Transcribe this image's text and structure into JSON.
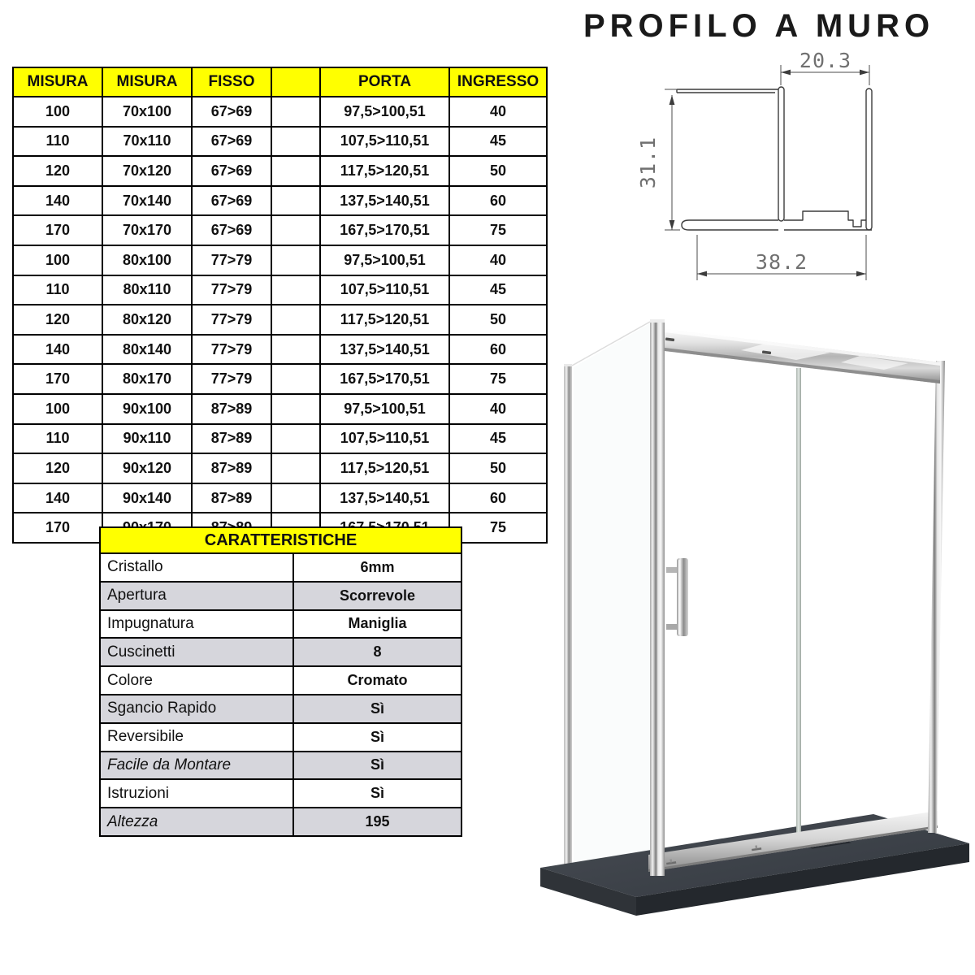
{
  "page": {
    "title": "PROFILO A MURO"
  },
  "size_table": {
    "headers": [
      "MISURA",
      "MISURA",
      "FISSO",
      "",
      "PORTA",
      "INGRESSO"
    ],
    "rows": [
      [
        "100",
        "70x100",
        "67>69",
        "",
        "97,5>100,51",
        "40"
      ],
      [
        "110",
        "70x110",
        "67>69",
        "",
        "107,5>110,51",
        "45"
      ],
      [
        "120",
        "70x120",
        "67>69",
        "",
        "117,5>120,51",
        "50"
      ],
      [
        "140",
        "70x140",
        "67>69",
        "",
        "137,5>140,51",
        "60"
      ],
      [
        "170",
        "70x170",
        "67>69",
        "",
        "167,5>170,51",
        "75"
      ],
      [
        "100",
        "80x100",
        "77>79",
        "",
        "97,5>100,51",
        "40"
      ],
      [
        "110",
        "80x110",
        "77>79",
        "",
        "107,5>110,51",
        "45"
      ],
      [
        "120",
        "80x120",
        "77>79",
        "",
        "117,5>120,51",
        "50"
      ],
      [
        "140",
        "80x140",
        "77>79",
        "",
        "137,5>140,51",
        "60"
      ],
      [
        "170",
        "80x170",
        "77>79",
        "",
        "167,5>170,51",
        "75"
      ],
      [
        "100",
        "90x100",
        "87>89",
        "",
        "97,5>100,51",
        "40"
      ],
      [
        "110",
        "90x110",
        "87>89",
        "",
        "107,5>110,51",
        "45"
      ],
      [
        "120",
        "90x120",
        "87>89",
        "",
        "117,5>120,51",
        "50"
      ],
      [
        "140",
        "90x140",
        "87>89",
        "",
        "137,5>140,51",
        "60"
      ],
      [
        "170",
        "90x170",
        "87>89",
        "",
        "167,5>170,51",
        "75"
      ]
    ]
  },
  "caratteristiche": {
    "header": "CARATTERISTICHE",
    "rows": [
      {
        "label": "Cristallo",
        "value": "6mm",
        "italic": false
      },
      {
        "label": "Apertura",
        "value": "Scorrevole",
        "italic": false
      },
      {
        "label": "Impugnatura",
        "value": "Maniglia",
        "italic": false
      },
      {
        "label": "Cuscinetti",
        "value": "8",
        "italic": false
      },
      {
        "label": "Colore",
        "value": "Cromato",
        "italic": false
      },
      {
        "label": "Sgancio Rapido",
        "value": "Sì",
        "italic": false
      },
      {
        "label": "Reversibile",
        "value": "Sì",
        "italic": false
      },
      {
        "label": "Facile da Montare",
        "value": "Sì",
        "italic": true
      },
      {
        "label": "Istruzioni",
        "value": "Sì",
        "italic": false
      },
      {
        "label": "Altezza",
        "value": "195",
        "italic": true
      }
    ]
  },
  "profile_drawing": {
    "dim_top": "20.3",
    "dim_left": "31.1",
    "dim_bottom": "38.2"
  },
  "colors": {
    "table_header_bg": "#ffff00",
    "band_row_bg": "#d6d6dc",
    "grid_border": "#000000",
    "dim_text": "#707070",
    "tray_top": "#3f444b",
    "tray_front": "#24282d",
    "chrome_mid": "#b9b9b9"
  }
}
